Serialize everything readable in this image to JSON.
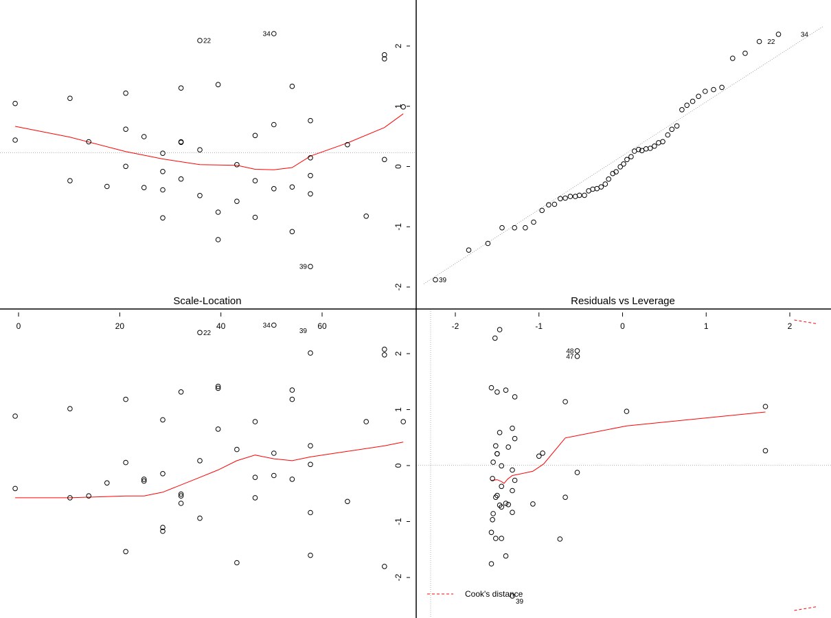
{
  "chart_data": [
    {
      "type": "scatter",
      "panel": "top-left",
      "title": "",
      "xlim": [
        0,
        75
      ],
      "ylim": [
        -2.2,
        2.3
      ],
      "x_ticks": [],
      "y_ticks": [],
      "hline": 0.16,
      "points": [
        [
          -0.8,
          1.02
        ],
        [
          -0.8,
          0.38
        ],
        [
          10,
          1.11
        ],
        [
          10,
          -0.33
        ],
        [
          13.7,
          0.35
        ],
        [
          17.3,
          -0.43
        ],
        [
          21,
          1.2
        ],
        [
          21,
          0.57
        ],
        [
          21,
          -0.08
        ],
        [
          24.6,
          0.44
        ],
        [
          24.6,
          -0.45
        ],
        [
          28.3,
          0.15
        ],
        [
          28.3,
          -0.17
        ],
        [
          28.3,
          -0.49
        ],
        [
          28.3,
          -0.98
        ],
        [
          31.9,
          1.29
        ],
        [
          31.9,
          0.34
        ],
        [
          31.9,
          0.35
        ],
        [
          31.9,
          -0.3
        ],
        [
          35.6,
          2.12
        ],
        [
          35.6,
          0.21
        ],
        [
          35.6,
          -0.59
        ],
        [
          39.2,
          1.35
        ],
        [
          39.2,
          -0.88
        ],
        [
          39.2,
          -1.36
        ],
        [
          42.9,
          -0.05
        ],
        [
          42.9,
          -0.69
        ],
        [
          46.5,
          0.46
        ],
        [
          46.5,
          -0.33
        ],
        [
          46.5,
          -0.97
        ],
        [
          50.2,
          2.24
        ],
        [
          50.2,
          0.65
        ],
        [
          50.2,
          -0.47
        ],
        [
          53.8,
          1.32
        ],
        [
          53.8,
          -0.44
        ],
        [
          53.8,
          -1.22
        ],
        [
          57.4,
          0.72
        ],
        [
          57.4,
          0.07
        ],
        [
          57.4,
          -0.24
        ],
        [
          57.4,
          -0.56
        ],
        [
          57.4,
          -1.83
        ],
        [
          64.7,
          0.3
        ],
        [
          68.4,
          -0.95
        ],
        [
          72,
          1.87
        ],
        [
          72,
          1.8
        ],
        [
          72,
          0.04
        ],
        [
          75.7,
          0.96
        ]
      ],
      "labels": [
        {
          "text": "22",
          "x": 35.6,
          "y": 2.12
        },
        {
          "text": "34",
          "x": 50.2,
          "y": 2.24
        },
        {
          "text": "39",
          "x": 57.4,
          "y": -1.83
        }
      ],
      "smooth": [
        [
          -0.8,
          0.62
        ],
        [
          10,
          0.43
        ],
        [
          21,
          0.18
        ],
        [
          28.3,
          0.05
        ],
        [
          35.6,
          -0.05
        ],
        [
          42.9,
          -0.06
        ],
        [
          46.5,
          -0.13
        ],
        [
          50.2,
          -0.14
        ],
        [
          53.8,
          -0.1
        ],
        [
          57.4,
          0.1
        ],
        [
          64.7,
          0.33
        ],
        [
          72,
          0.6
        ],
        [
          75.7,
          0.84
        ]
      ]
    },
    {
      "type": "scatter",
      "panel": "top-right",
      "title": "",
      "xlim": [
        -2.4,
        2.4
      ],
      "ylim": [
        -2.28,
        2.3
      ],
      "y_ticks": [
        -2,
        -1,
        0,
        1,
        2
      ],
      "ref_line": {
        "intercept": 0.08,
        "slope": 0.96
      },
      "points": [
        [
          -2.26,
          -2.15
        ],
        [
          -1.86,
          -1.62
        ],
        [
          -1.63,
          -1.5
        ],
        [
          -1.46,
          -1.22
        ],
        [
          -1.31,
          -1.22
        ],
        [
          -1.18,
          -1.22
        ],
        [
          -1.08,
          -1.12
        ],
        [
          -0.98,
          -0.91
        ],
        [
          -0.9,
          -0.81
        ],
        [
          -0.83,
          -0.8
        ],
        [
          -0.76,
          -0.7
        ],
        [
          -0.7,
          -0.69
        ],
        [
          -0.64,
          -0.66
        ],
        [
          -0.58,
          -0.66
        ],
        [
          -0.53,
          -0.64
        ],
        [
          -0.47,
          -0.64
        ],
        [
          -0.42,
          -0.56
        ],
        [
          -0.37,
          -0.53
        ],
        [
          -0.32,
          -0.52
        ],
        [
          -0.27,
          -0.49
        ],
        [
          -0.22,
          -0.44
        ],
        [
          -0.18,
          -0.35
        ],
        [
          -0.13,
          -0.25
        ],
        [
          -0.09,
          -0.22
        ],
        [
          -0.04,
          -0.13
        ],
        [
          0,
          -0.08
        ],
        [
          0.04,
          0
        ],
        [
          0.09,
          0.05
        ],
        [
          0.13,
          0.15
        ],
        [
          0.18,
          0.18
        ],
        [
          0.22,
          0.16
        ],
        [
          0.27,
          0.19
        ],
        [
          0.32,
          0.2
        ],
        [
          0.37,
          0.24
        ],
        [
          0.42,
          0.3
        ],
        [
          0.47,
          0.32
        ],
        [
          0.53,
          0.44
        ],
        [
          0.58,
          0.54
        ],
        [
          0.64,
          0.6
        ],
        [
          0.7,
          0.89
        ],
        [
          0.76,
          0.97
        ],
        [
          0.83,
          1.04
        ],
        [
          0.9,
          1.13
        ],
        [
          0.98,
          1.22
        ],
        [
          1.08,
          1.25
        ],
        [
          1.18,
          1.29
        ],
        [
          1.31,
          1.81
        ],
        [
          1.46,
          1.9
        ],
        [
          1.63,
          2.11
        ],
        [
          1.86,
          2.24
        ]
      ],
      "labels": [
        {
          "text": "22",
          "x": 1.86,
          "y": 2.11
        },
        {
          "text": "34",
          "x": 2.26,
          "y": 2.24
        },
        {
          "text": "39",
          "x": -2.26,
          "y": -2.15
        }
      ]
    },
    {
      "type": "scatter",
      "panel": "bottom-left",
      "title": "Scale-Location",
      "xlim": [
        0,
        75
      ],
      "ylim": [
        0,
        1.55
      ],
      "x_ticks": [
        0,
        20,
        40,
        60
      ],
      "points": [
        [
          -0.8,
          1.01
        ],
        [
          -0.8,
          0.62
        ],
        [
          10,
          1.05
        ],
        [
          10,
          0.57
        ],
        [
          13.7,
          0.58
        ],
        [
          17.3,
          0.65
        ],
        [
          21,
          1.1
        ],
        [
          21,
          0.76
        ],
        [
          21,
          0.28
        ],
        [
          24.6,
          0.66
        ],
        [
          24.6,
          0.67
        ],
        [
          28.3,
          0.39
        ],
        [
          28.3,
          0.41
        ],
        [
          28.3,
          0.7
        ],
        [
          28.3,
          0.99
        ],
        [
          31.9,
          1.14
        ],
        [
          31.9,
          0.58
        ],
        [
          31.9,
          0.59
        ],
        [
          31.9,
          0.54
        ],
        [
          35.6,
          1.46
        ],
        [
          35.6,
          0.46
        ],
        [
          35.6,
          0.77
        ],
        [
          39.2,
          1.16
        ],
        [
          39.2,
          0.94
        ],
        [
          39.2,
          1.17
        ],
        [
          42.9,
          0.22
        ],
        [
          42.9,
          0.83
        ],
        [
          46.5,
          0.68
        ],
        [
          46.5,
          0.57
        ],
        [
          46.5,
          0.98
        ],
        [
          50.2,
          1.5
        ],
        [
          50.2,
          0.81
        ],
        [
          50.2,
          0.69
        ],
        [
          53.8,
          1.15
        ],
        [
          53.8,
          0.67
        ],
        [
          53.8,
          1.1
        ],
        [
          57.4,
          0.85
        ],
        [
          57.4,
          0.26
        ],
        [
          57.4,
          0.49
        ],
        [
          57.4,
          0.75
        ],
        [
          57.4,
          1.35
        ],
        [
          64.7,
          0.55
        ],
        [
          68.4,
          0.98
        ],
        [
          72,
          1.37
        ],
        [
          72,
          1.34
        ],
        [
          72,
          0.2
        ],
        [
          75.7,
          0.98
        ]
      ],
      "labels": [
        {
          "text": "22",
          "x": 35.6,
          "y": 1.46
        },
        {
          "text": "34",
          "x": 50.2,
          "y": 1.5
        },
        {
          "text": "39",
          "x": 57.4,
          "y": 1.47
        }
      ],
      "smooth": [
        [
          -0.8,
          0.57
        ],
        [
          10,
          0.57
        ],
        [
          21,
          0.58
        ],
        [
          24.6,
          0.58
        ],
        [
          28.3,
          0.6
        ],
        [
          35.6,
          0.68
        ],
        [
          39.2,
          0.72
        ],
        [
          42.9,
          0.77
        ],
        [
          46.5,
          0.8
        ],
        [
          50.2,
          0.78
        ],
        [
          53.8,
          0.77
        ],
        [
          57.4,
          0.79
        ],
        [
          64.7,
          0.82
        ],
        [
          72,
          0.85
        ],
        [
          75.7,
          0.87
        ]
      ]
    },
    {
      "type": "scatter",
      "panel": "bottom-right",
      "title": "Residuals vs Leverage",
      "xlim": [
        0.02,
        0.12
      ],
      "ylim": [
        -2.4,
        2.4
      ],
      "x_ticks": [
        -2,
        -1,
        0,
        1,
        2
      ],
      "y_ticks": [
        -2,
        -1,
        0,
        1,
        2
      ],
      "hline": 0,
      "legend": {
        "text": "Cook's distance",
        "position": "bottom-left"
      },
      "points": [
        [
          0.03,
          1.28
        ],
        [
          0.03,
          -1.63
        ],
        [
          0.03,
          -1.11
        ],
        [
          0.0303,
          -0.22
        ],
        [
          0.0303,
          -0.9
        ],
        [
          0.0305,
          0.05
        ],
        [
          0.0305,
          -0.8
        ],
        [
          0.031,
          2.1
        ],
        [
          0.0312,
          0.32
        ],
        [
          0.0312,
          -0.53
        ],
        [
          0.0312,
          -1.21
        ],
        [
          0.0316,
          1.21
        ],
        [
          0.0316,
          0.19
        ],
        [
          0.0316,
          0.19
        ],
        [
          0.0316,
          -0.5
        ],
        [
          0.0323,
          2.24
        ],
        [
          0.0323,
          0.54
        ],
        [
          0.0323,
          -0.66
        ],
        [
          0.0328,
          -0.01
        ],
        [
          0.0328,
          -0.35
        ],
        [
          0.0328,
          -0.69
        ],
        [
          0.0328,
          -1.21
        ],
        [
          0.034,
          1.24
        ],
        [
          0.034,
          -0.63
        ],
        [
          0.034,
          -1.5
        ],
        [
          0.0347,
          0.3
        ],
        [
          0.0347,
          -0.65
        ],
        [
          0.0358,
          0.61
        ],
        [
          0.0358,
          -0.08
        ],
        [
          0.0358,
          -0.42
        ],
        [
          0.0358,
          -0.78
        ],
        [
          0.0358,
          -2.16
        ],
        [
          0.0365,
          1.13
        ],
        [
          0.0365,
          0.44
        ],
        [
          0.0365,
          -0.25
        ],
        [
          0.0415,
          -0.64
        ],
        [
          0.0432,
          0.15
        ],
        [
          0.0442,
          0.2
        ],
        [
          0.049,
          -1.22
        ],
        [
          0.0505,
          1.05
        ],
        [
          0.0505,
          -0.53
        ],
        [
          0.0538,
          1.89
        ],
        [
          0.0538,
          1.8
        ],
        [
          0.0538,
          -0.12
        ],
        [
          0.0675,
          0.89
        ],
        [
          0.106,
          0.97
        ],
        [
          0.106,
          0.24
        ]
      ],
      "labels": [
        {
          "text": "48",
          "x": 0.0538,
          "y": 1.89
        },
        {
          "text": "47",
          "x": 0.0538,
          "y": 1.8
        },
        {
          "text": "39",
          "x": 0.0358,
          "y": -2.16
        }
      ],
      "smooth": [
        [
          0.03,
          -0.25
        ],
        [
          0.0316,
          -0.24
        ],
        [
          0.0328,
          -0.27
        ],
        [
          0.0335,
          -0.3
        ],
        [
          0.0345,
          -0.23
        ],
        [
          0.0358,
          -0.17
        ],
        [
          0.0375,
          -0.15
        ],
        [
          0.0415,
          -0.1
        ],
        [
          0.0445,
          0.02
        ],
        [
          0.0505,
          0.45
        ],
        [
          0.0675,
          0.65
        ],
        [
          0.106,
          0.88
        ]
      ],
      "cooks_curves": [
        [
          [
            0.114,
            2.4
          ],
          [
            0.12,
            2.34
          ]
        ],
        [
          [
            0.114,
            -2.4
          ],
          [
            0.12,
            -2.34
          ]
        ]
      ]
    }
  ]
}
